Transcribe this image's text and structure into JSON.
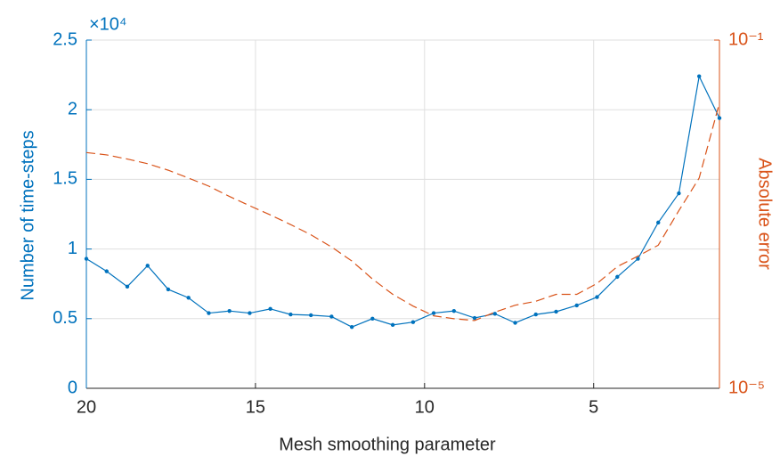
{
  "chart_data": {
    "type": "line",
    "xlabel": "Mesh smoothing parameter",
    "ylabel": "Number of time-steps",
    "y2label": "Absolute error",
    "y_exponent_label": "×10⁴",
    "x": [
      20,
      19.4,
      18.79,
      18.19,
      17.58,
      16.98,
      16.38,
      15.77,
      15.17,
      14.56,
      13.96,
      13.36,
      12.75,
      12.15,
      11.54,
      10.94,
      10.34,
      9.73,
      9.13,
      8.52,
      7.92,
      7.32,
      6.71,
      6.11,
      5.5,
      4.9,
      4.3,
      3.69,
      3.09,
      2.48,
      1.88,
      1.28
    ],
    "xlim": [
      20,
      1.28
    ],
    "x_reversed": true,
    "xticks": [
      20,
      15,
      10,
      5
    ],
    "ylim": [
      0,
      25000
    ],
    "yticks": [
      0,
      {
        "value": 5000,
        "label": "0.5"
      },
      {
        "value": 10000,
        "label": "1"
      },
      {
        "value": 15000,
        "label": "1.5"
      },
      {
        "value": 20000,
        "label": "2"
      },
      {
        "value": 25000,
        "label": "2.5"
      }
    ],
    "y2lim": [
      1e-05,
      0.1
    ],
    "y2_log": true,
    "y2ticks": [
      {
        "value": 1e-05,
        "label": "10⁻⁵"
      },
      {
        "value": 0.1,
        "label": "10⁻¹"
      }
    ],
    "grid": true,
    "series": [
      {
        "name": "Number of time-steps",
        "color": "#0072bd",
        "axis": "y",
        "dashed": false,
        "markers": true,
        "values": [
          9300,
          8400,
          7300,
          8800,
          7100,
          6500,
          5400,
          5550,
          5400,
          5700,
          5300,
          5250,
          5150,
          4400,
          5000,
          4550,
          4750,
          5400,
          5550,
          5050,
          5350,
          4700,
          5300,
          5500,
          5950,
          6550,
          8000,
          9300,
          11900,
          14000,
          22400,
          19400
        ]
      },
      {
        "name": "Absolute error",
        "color": "#d95319",
        "axis": "y2",
        "dashed": true,
        "markers": false,
        "values": [
          0.0051,
          0.0048,
          0.0043,
          0.0038,
          0.0032,
          0.0026,
          0.0021,
          0.0016,
          0.00125,
          0.00098,
          0.00076,
          0.00058,
          0.00042,
          0.00029,
          0.00018,
          0.00012,
          8.8e-05,
          6.8e-05,
          6.3e-05,
          6e-05,
          7.5e-05,
          9e-05,
          0.0001,
          0.00012,
          0.00012,
          0.00016,
          0.00025,
          0.00033,
          0.00044,
          0.0011,
          0.0026,
          0.019
        ]
      }
    ]
  }
}
